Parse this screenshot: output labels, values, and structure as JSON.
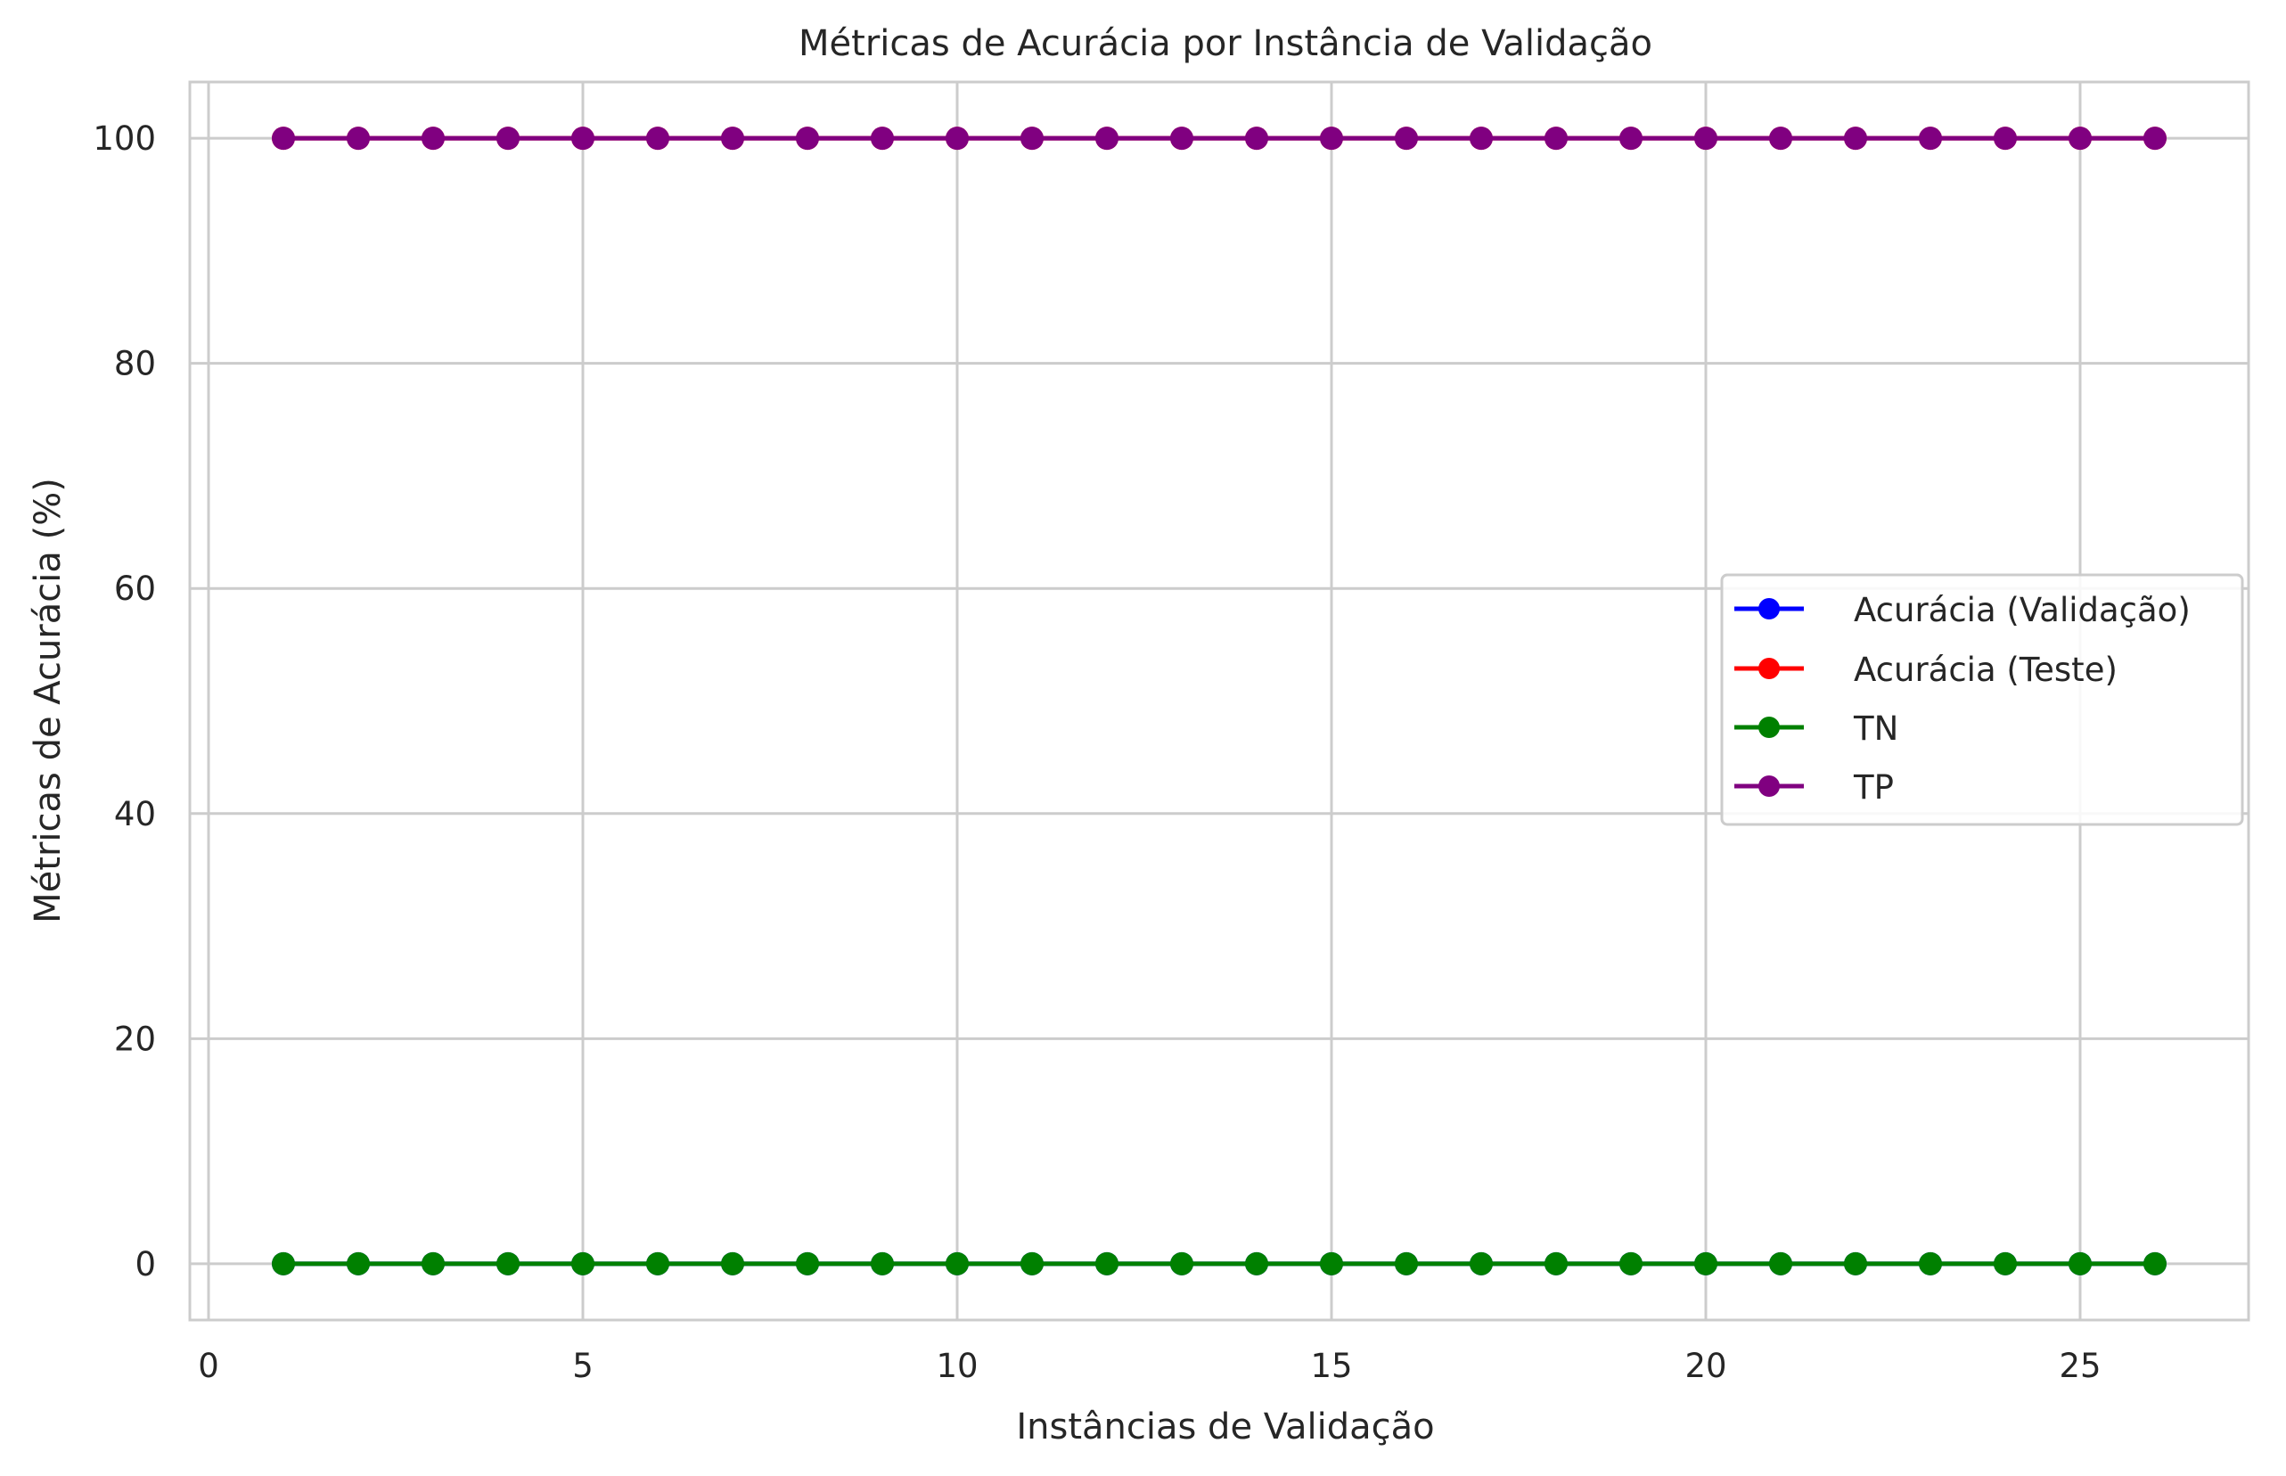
{
  "chart_data": {
    "type": "line",
    "title": "Métricas de Acurácia por Instância de Validação",
    "xlabel": "Instâncias de Validação",
    "ylabel": "Métricas de Acurácia (%)",
    "xlim": [
      -0.25,
      27.25
    ],
    "ylim": [
      -5,
      105
    ],
    "xticks": [
      0,
      5,
      10,
      15,
      20,
      25
    ],
    "yticks": [
      0,
      20,
      40,
      60,
      80,
      100
    ],
    "grid": true,
    "legend_position": "center-right",
    "x": [
      1,
      2,
      3,
      4,
      5,
      6,
      7,
      8,
      9,
      10,
      11,
      12,
      13,
      14,
      15,
      16,
      17,
      18,
      19,
      20,
      21,
      22,
      23,
      24,
      25,
      26
    ],
    "series": [
      {
        "name": "Acurácia (Validação)",
        "color": "#0000ff",
        "values": [
          0,
          0,
          0,
          0,
          0,
          0,
          0,
          0,
          0,
          0,
          0,
          0,
          0,
          0,
          0,
          0,
          0,
          0,
          0,
          0,
          0,
          0,
          0,
          0,
          0,
          0
        ]
      },
      {
        "name": "Acurácia (Teste)",
        "color": "#ff0000",
        "values": [
          100,
          100,
          100,
          100,
          100,
          100,
          100,
          100,
          100,
          100,
          100,
          100,
          100,
          100,
          100,
          100,
          100,
          100,
          100,
          100,
          100,
          100,
          100,
          100,
          100,
          100
        ]
      },
      {
        "name": "TN",
        "color": "#008000",
        "values": [
          0,
          0,
          0,
          0,
          0,
          0,
          0,
          0,
          0,
          0,
          0,
          0,
          0,
          0,
          0,
          0,
          0,
          0,
          0,
          0,
          0,
          0,
          0,
          0,
          0,
          0
        ]
      },
      {
        "name": "TP",
        "color": "#800080",
        "values": [
          100,
          100,
          100,
          100,
          100,
          100,
          100,
          100,
          100,
          100,
          100,
          100,
          100,
          100,
          100,
          100,
          100,
          100,
          100,
          100,
          100,
          100,
          100,
          100,
          100,
          100
        ]
      }
    ]
  }
}
